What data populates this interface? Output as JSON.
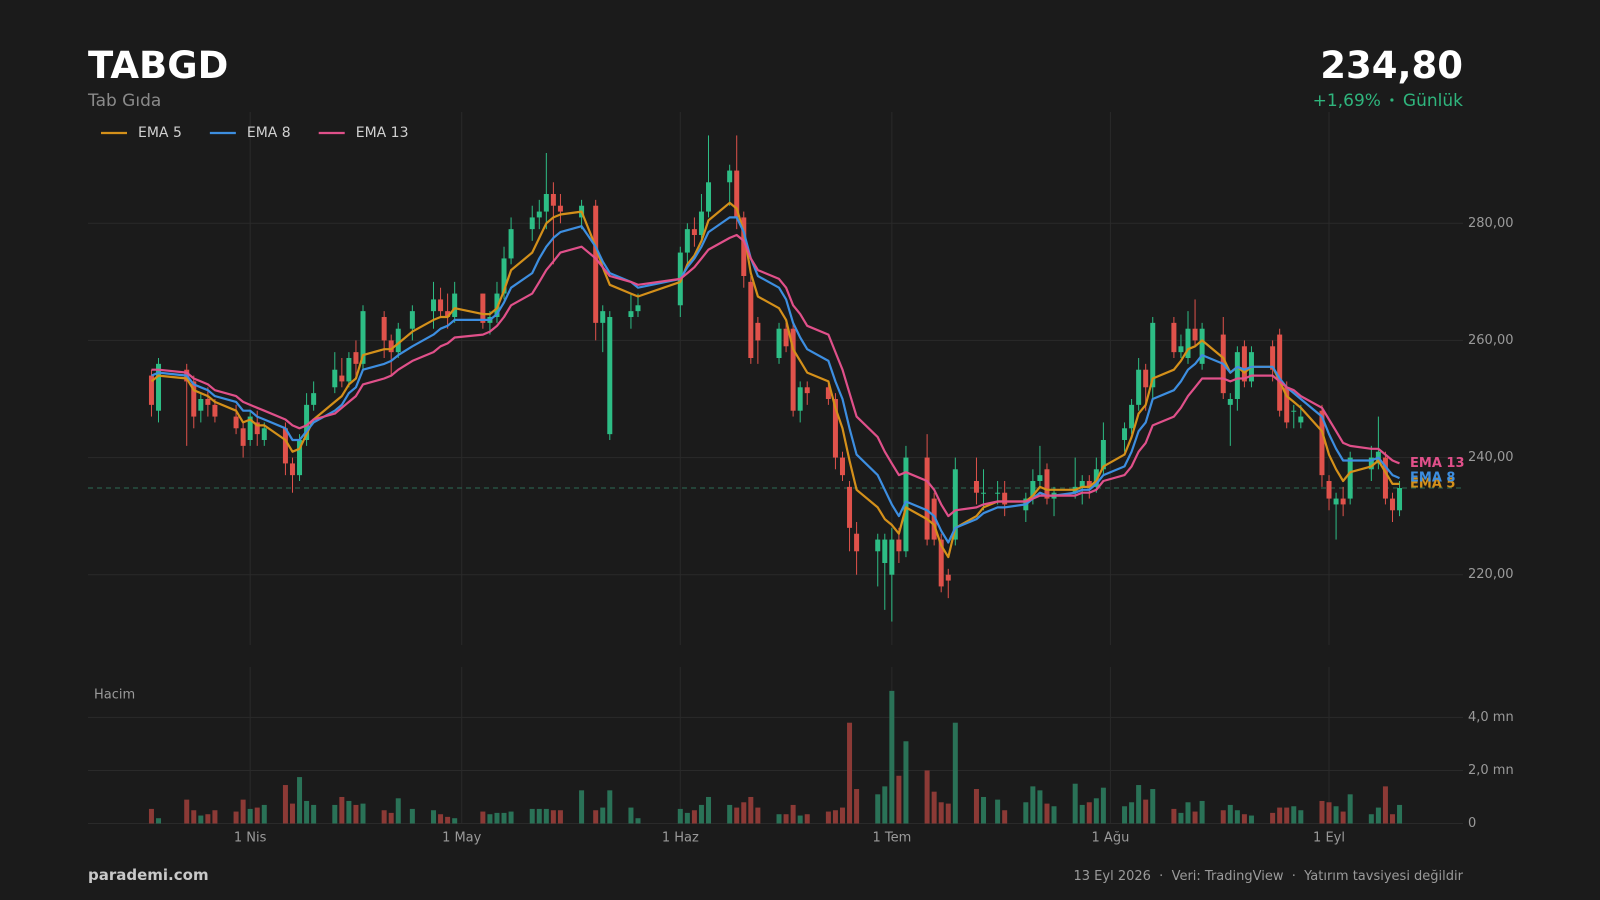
{
  "header": {
    "symbol": "TABGD",
    "name": "Tab Gıda",
    "price": "234,80",
    "change": "+1,69%",
    "period": "Günlük"
  },
  "footer": {
    "brand": "parademi.com",
    "note": "13 Eyl 2026  ·  Veri: TradingView  ·  Yatırım tavsiyesi değildir"
  },
  "chart_data": {
    "type": "candlestick",
    "up_color": "#2dbd85",
    "down_color": "#e0524b",
    "grid": true,
    "legend": "top-left",
    "xlim": [
      "2026-03-09",
      "2026-09-20"
    ],
    "xticks": [
      {
        "value": "2026-04-01",
        "label": "1 Nis"
      },
      {
        "value": "2026-05-01",
        "label": "1 May"
      },
      {
        "value": "2026-06-01",
        "label": "1 Haz"
      },
      {
        "value": "2026-07-01",
        "label": "1 Tem"
      },
      {
        "value": "2026-08-01",
        "label": "1 Ağu"
      },
      {
        "value": "2026-09-01",
        "label": "1 Eyl"
      }
    ],
    "ylim": [
      208,
      299
    ],
    "yticks": [
      {
        "value": 220,
        "label": "220,00"
      },
      {
        "value": 240,
        "label": "240,00"
      },
      {
        "value": 260,
        "label": "260,00"
      },
      {
        "value": 280,
        "label": "280,00"
      }
    ],
    "x": [
      "2026-03-18",
      "2026-03-19",
      "2026-03-23",
      "2026-03-24",
      "2026-03-25",
      "2026-03-26",
      "2026-03-27",
      "2026-03-30",
      "2026-03-31",
      "2026-04-01",
      "2026-04-02",
      "2026-04-03",
      "2026-04-06",
      "2026-04-07",
      "2026-04-08",
      "2026-04-09",
      "2026-04-10",
      "2026-04-13",
      "2026-04-14",
      "2026-04-15",
      "2026-04-16",
      "2026-04-17",
      "2026-04-20",
      "2026-04-21",
      "2026-04-22",
      "2026-04-24",
      "2026-04-27",
      "2026-04-28",
      "2026-04-29",
      "2026-04-30",
      "2026-05-04",
      "2026-05-05",
      "2026-05-06",
      "2026-05-07",
      "2026-05-08",
      "2026-05-11",
      "2026-05-12",
      "2026-05-13",
      "2026-05-14",
      "2026-05-15",
      "2026-05-18",
      "2026-05-20",
      "2026-05-21",
      "2026-05-22",
      "2026-05-25",
      "2026-05-26",
      "2026-06-01",
      "2026-06-02",
      "2026-06-03",
      "2026-06-04",
      "2026-06-05",
      "2026-06-08",
      "2026-06-09",
      "2026-06-10",
      "2026-06-11",
      "2026-06-12",
      "2026-06-15",
      "2026-06-16",
      "2026-06-17",
      "2026-06-18",
      "2026-06-19",
      "2026-06-22",
      "2026-06-23",
      "2026-06-24",
      "2026-06-25",
      "2026-06-26",
      "2026-06-29",
      "2026-06-30",
      "2026-07-01",
      "2026-07-02",
      "2026-07-03",
      "2026-07-06",
      "2026-07-07",
      "2026-07-08",
      "2026-07-09",
      "2026-07-10",
      "2026-07-13",
      "2026-07-14",
      "2026-07-16",
      "2026-07-17",
      "2026-07-20",
      "2026-07-21",
      "2026-07-22",
      "2026-07-23",
      "2026-07-24",
      "2026-07-27",
      "2026-07-28",
      "2026-07-29",
      "2026-07-30",
      "2026-07-31",
      "2026-08-03",
      "2026-08-04",
      "2026-08-05",
      "2026-08-06",
      "2026-08-07",
      "2026-08-10",
      "2026-08-11",
      "2026-08-12",
      "2026-08-13",
      "2026-08-14",
      "2026-08-17",
      "2026-08-18",
      "2026-08-19",
      "2026-08-20",
      "2026-08-21",
      "2026-08-24",
      "2026-08-25",
      "2026-08-26",
      "2026-08-27",
      "2026-08-28",
      "2026-08-31",
      "2026-09-01",
      "2026-09-02",
      "2026-09-03",
      "2026-09-04",
      "2026-09-07",
      "2026-09-08",
      "2026-09-09",
      "2026-09-10",
      "2026-09-11"
    ],
    "open": [
      254,
      248,
      255,
      253,
      248,
      250,
      249,
      247,
      245,
      243,
      246,
      243,
      245,
      239,
      237,
      243,
      249,
      252,
      254,
      253,
      258,
      256,
      264,
      260,
      258,
      262,
      265,
      267,
      265,
      264,
      268,
      263,
      264,
      268,
      274,
      279,
      281,
      282,
      285,
      283,
      281,
      283,
      263,
      244,
      264,
      265,
      266,
      275,
      279,
      278,
      282,
      287,
      289,
      281,
      270,
      263,
      257,
      262,
      262,
      248,
      252,
      252,
      250,
      240,
      235,
      227,
      224,
      222,
      220,
      226,
      224,
      240,
      233,
      226,
      220,
      226,
      236,
      234,
      234,
      234,
      231,
      233,
      236,
      238,
      233,
      234,
      235,
      236,
      235,
      238,
      243,
      245,
      249,
      255,
      252,
      263,
      258,
      257,
      262,
      256,
      261,
      249,
      250,
      259,
      253,
      259,
      261,
      252,
      248,
      246,
      248,
      236,
      232,
      233,
      233,
      238,
      239,
      240,
      233,
      231
    ],
    "high": [
      255,
      257,
      256,
      254,
      251,
      252,
      250,
      249,
      246,
      248,
      248,
      246,
      246,
      240,
      244,
      251,
      253,
      258,
      257,
      258,
      260,
      266,
      265,
      261,
      263,
      266,
      270,
      269,
      268,
      270,
      268,
      265,
      270,
      276,
      281,
      283,
      284,
      292,
      287,
      285,
      284,
      284,
      266,
      265,
      268,
      268,
      276,
      280,
      281,
      285,
      295,
      290,
      295,
      282,
      271,
      264,
      263,
      263,
      263,
      253,
      253,
      253,
      251,
      241,
      236,
      229,
      227,
      227,
      228,
      228,
      242,
      244,
      234,
      227,
      221,
      240,
      240,
      238,
      236,
      236,
      234,
      238,
      242,
      239,
      235,
      240,
      237,
      237,
      240,
      246,
      246,
      250,
      257,
      256,
      264,
      264,
      261,
      265,
      267,
      263,
      264,
      251,
      259,
      260,
      259,
      260,
      262,
      253,
      249,
      249,
      249,
      237,
      234,
      235,
      241,
      242,
      247,
      241,
      234,
      236
    ],
    "low": [
      247,
      246,
      242,
      245,
      246,
      247,
      246,
      244,
      240,
      242,
      242,
      242,
      237,
      234,
      236,
      242,
      248,
      251,
      252,
      252,
      254,
      255,
      257,
      254,
      257,
      260,
      262,
      264,
      262,
      263,
      262,
      261,
      263,
      267,
      273,
      277,
      279,
      279,
      273,
      280,
      279,
      260,
      258,
      243,
      262,
      264,
      264,
      273,
      276,
      277,
      281,
      283,
      279,
      269,
      256,
      256,
      256,
      258,
      247,
      246,
      249,
      249,
      238,
      236,
      224,
      220,
      218,
      214,
      212,
      222,
      223,
      225,
      225,
      217,
      216,
      225,
      232,
      231,
      232,
      230,
      229,
      232,
      235,
      232,
      230,
      233,
      232,
      233,
      234,
      237,
      241,
      244,
      248,
      248,
      250,
      257,
      257,
      256,
      259,
      255,
      250,
      242,
      248,
      252,
      252,
      253,
      247,
      245,
      245,
      245,
      235,
      231,
      226,
      230,
      232,
      236,
      238,
      232,
      229,
      230
    ],
    "close": [
      249,
      256,
      253,
      247,
      250,
      249,
      247,
      245,
      242,
      247,
      244,
      245,
      239,
      237,
      243,
      249,
      251,
      255,
      253,
      257,
      256,
      265,
      260,
      258,
      262,
      265,
      267,
      265,
      264,
      268,
      263,
      264,
      268,
      274,
      279,
      281,
      282,
      285,
      283,
      282,
      283,
      263,
      265,
      264,
      265,
      266,
      275,
      279,
      278,
      282,
      287,
      289,
      281,
      271,
      257,
      260,
      262,
      259,
      248,
      252,
      251,
      250,
      240,
      237,
      228,
      224,
      226,
      226,
      226,
      224,
      240,
      226,
      226,
      218,
      219,
      238,
      234,
      234,
      234,
      232,
      233,
      236,
      237,
      233,
      234,
      235,
      236,
      235,
      238,
      243,
      245,
      249,
      255,
      252,
      263,
      258,
      259,
      262,
      260,
      262,
      251,
      250,
      258,
      253,
      258,
      255,
      248,
      246,
      248,
      247,
      237,
      233,
      233,
      232,
      240,
      240,
      241,
      233,
      231,
      234.8
    ],
    "series": [
      {
        "name": "EMA 5",
        "color": "#d4901a",
        "values": [
          253,
          254,
          253.5,
          251.5,
          251,
          250.5,
          249.5,
          248,
          246,
          246.5,
          245.5,
          245.5,
          243,
          241,
          241.5,
          244,
          246.5,
          249.5,
          250.5,
          252.5,
          253.5,
          257.5,
          258.5,
          258.5,
          259.5,
          261.5,
          263.5,
          264,
          264,
          265.5,
          264.5,
          264.5,
          265.5,
          268.5,
          272,
          275,
          277.5,
          280,
          281,
          281.5,
          282,
          276,
          272.5,
          269.5,
          268,
          267.5,
          270,
          273,
          274.5,
          277,
          280.5,
          283.5,
          282.5,
          278.5,
          271.5,
          267.5,
          265.5,
          263.5,
          258.5,
          256.5,
          254.5,
          253,
          248.5,
          245,
          239.5,
          234.5,
          231.5,
          229.5,
          228.5,
          227,
          231.5,
          229.5,
          228.5,
          225,
          223,
          228,
          230,
          231.5,
          232.5,
          232.5,
          232.5,
          233.5,
          235,
          234.5,
          234.5,
          234.5,
          235,
          235,
          236,
          238.5,
          240.5,
          243.5,
          247.5,
          249,
          253.5,
          255,
          256.5,
          258.5,
          259,
          260,
          257,
          254.5,
          255.5,
          254.5,
          255.5,
          255.5,
          253,
          250.5,
          249.5,
          248.5,
          244.5,
          240.5,
          238,
          236,
          237.5,
          238.5,
          239.5,
          237.5,
          235.5,
          235.5
        ]
      },
      {
        "name": "EMA 8",
        "color": "#3d8ee0",
        "values": [
          254,
          254.5,
          254,
          252.5,
          252,
          251.5,
          250.5,
          249.5,
          248,
          248,
          247,
          246.5,
          245,
          243,
          243,
          244.5,
          246,
          248,
          249,
          251,
          252,
          255,
          256,
          256.5,
          257.5,
          259,
          261,
          262,
          262.5,
          263.5,
          263.5,
          263.5,
          264.5,
          266.5,
          269,
          271.5,
          274,
          276,
          277.5,
          278.5,
          279.5,
          276,
          273.5,
          271.5,
          270,
          269,
          270.5,
          272.5,
          274,
          276,
          278.5,
          281,
          281,
          278.5,
          274,
          271,
          269,
          267,
          263,
          260.5,
          258.5,
          256.5,
          253,
          250,
          245,
          240.5,
          237,
          234.5,
          232,
          230,
          232.5,
          231,
          230,
          227.5,
          225.5,
          228,
          229.5,
          230.5,
          231.5,
          231.5,
          232,
          233,
          234,
          233.5,
          233.5,
          234,
          234.5,
          234.5,
          235.5,
          237,
          238.5,
          241,
          244.5,
          246,
          250,
          251.5,
          253,
          255,
          256,
          257.5,
          256,
          254.5,
          255.5,
          255,
          255.5,
          255.5,
          253.5,
          252,
          251,
          250,
          247,
          244,
          241.5,
          239.5,
          239.5,
          239.5,
          240,
          238.5,
          237,
          236.5
        ]
      },
      {
        "name": "EMA 13",
        "color": "#e0508a",
        "values": [
          255,
          255,
          254.5,
          253.5,
          253,
          252.5,
          251.5,
          250.5,
          249.5,
          249,
          248.5,
          248,
          246.5,
          245.5,
          245,
          245.5,
          246.5,
          247.5,
          248.5,
          249.5,
          250.5,
          252.5,
          253.5,
          254,
          255,
          256.5,
          258,
          259,
          259.5,
          260.5,
          261,
          261.5,
          262.5,
          264,
          266,
          268,
          270,
          272,
          273.5,
          275,
          276,
          274,
          272.5,
          271,
          270,
          269.5,
          270.5,
          271.5,
          272.5,
          274,
          275.5,
          277.5,
          278,
          277,
          274,
          272,
          270.5,
          269,
          266,
          264.5,
          262.5,
          261,
          258,
          255,
          251,
          247,
          243.5,
          241,
          239,
          237,
          237.5,
          236,
          234.5,
          232,
          230,
          231,
          231.5,
          232,
          232.5,
          232.5,
          232.5,
          233,
          233.5,
          233.5,
          233.5,
          233.5,
          234,
          234,
          234.5,
          236,
          237,
          238.5,
          241,
          242.5,
          245.5,
          247,
          248.5,
          250.5,
          252,
          253.5,
          253.5,
          253,
          253.5,
          253.5,
          254,
          254,
          253,
          252,
          251.5,
          250.5,
          248.5,
          246.5,
          244.5,
          242.5,
          242,
          241.5,
          241.5,
          240.5,
          239.5,
          239
        ]
      }
    ],
    "volume": {
      "label": "Hacim",
      "up_color": "#2a7257",
      "down_color": "#8c3a36",
      "ylim": [
        0,
        5.9
      ],
      "yticks": [
        0,
        {
          "value": 2,
          "label": "2,0 mn"
        },
        {
          "value": 4,
          "label": "4,0 mn"
        }
      ],
      "values": [
        0.55,
        0.2,
        0.9,
        0.5,
        0.3,
        0.35,
        0.5,
        0.45,
        0.9,
        0.55,
        0.6,
        0.7,
        1.45,
        0.75,
        1.75,
        0.85,
        0.7,
        0.7,
        1.0,
        0.85,
        0.7,
        0.75,
        0.5,
        0.4,
        0.95,
        0.55,
        0.5,
        0.35,
        0.25,
        0.2,
        0.45,
        0.35,
        0.4,
        0.4,
        0.45,
        0.55,
        0.55,
        0.55,
        0.5,
        0.5,
        1.25,
        0.5,
        0.6,
        1.25,
        0.6,
        0.2,
        0.55,
        0.4,
        0.5,
        0.7,
        1.0,
        0.7,
        0.6,
        0.8,
        1.0,
        0.6,
        0.35,
        0.35,
        0.7,
        0.3,
        0.35,
        0.45,
        0.5,
        0.6,
        3.8,
        1.3,
        1.1,
        1.4,
        5.0,
        1.8,
        3.1,
        2.0,
        1.2,
        0.8,
        0.75,
        3.8,
        1.3,
        1.0,
        0.9,
        0.5,
        0.8,
        1.4,
        1.25,
        0.75,
        0.65,
        1.5,
        0.7,
        0.8,
        0.95,
        1.35,
        0.65,
        0.8,
        1.45,
        0.9,
        1.3,
        0.55,
        0.4,
        0.8,
        0.45,
        0.85,
        0.5,
        0.7,
        0.5,
        0.35,
        0.3,
        0.4,
        0.6,
        0.6,
        0.65,
        0.5,
        0.85,
        0.8,
        0.65,
        0.45,
        1.1,
        0.35,
        0.6,
        1.4,
        0.35,
        0.7
      ]
    }
  }
}
